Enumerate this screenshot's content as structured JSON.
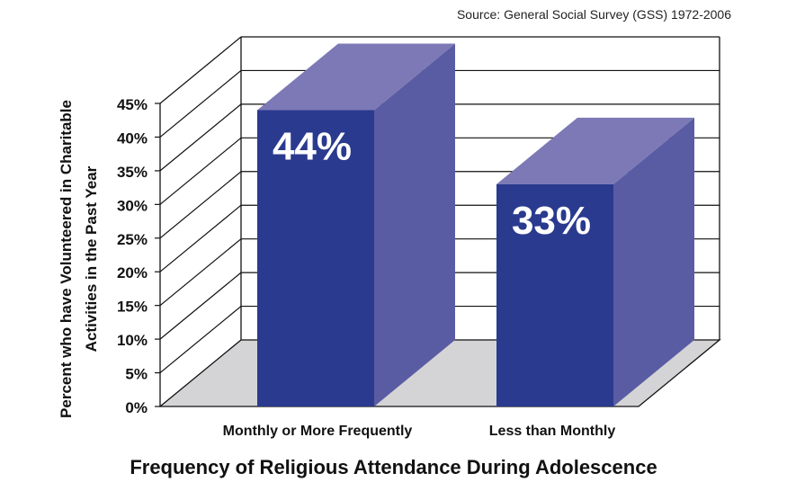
{
  "source": "Source: General Social Survey (GSS) 1972-2006",
  "chart_data": {
    "type": "bar",
    "categories": [
      "Monthly or More Frequently",
      "Less than Monthly"
    ],
    "values": [
      44,
      33
    ],
    "data_labels": [
      "44%",
      "33%"
    ],
    "title": "",
    "xlabel": "Frequency of Religious Attendance During Adolescence",
    "ylabel_lines": [
      "Percent who have Volunteered in Charitable",
      "Activities in the Past Year"
    ],
    "yticks": [
      "0%",
      "5%",
      "10%",
      "15%",
      "20%",
      "25%",
      "30%",
      "35%",
      "40%",
      "45%"
    ],
    "ylim": [
      0,
      45
    ],
    "grid": true,
    "legend": "none",
    "colors": {
      "bar_front": "#2a3a8f",
      "bar_top": "#7c79b6",
      "bar_side": "#5a5ca3",
      "floor": "#d4d4d6"
    }
  }
}
